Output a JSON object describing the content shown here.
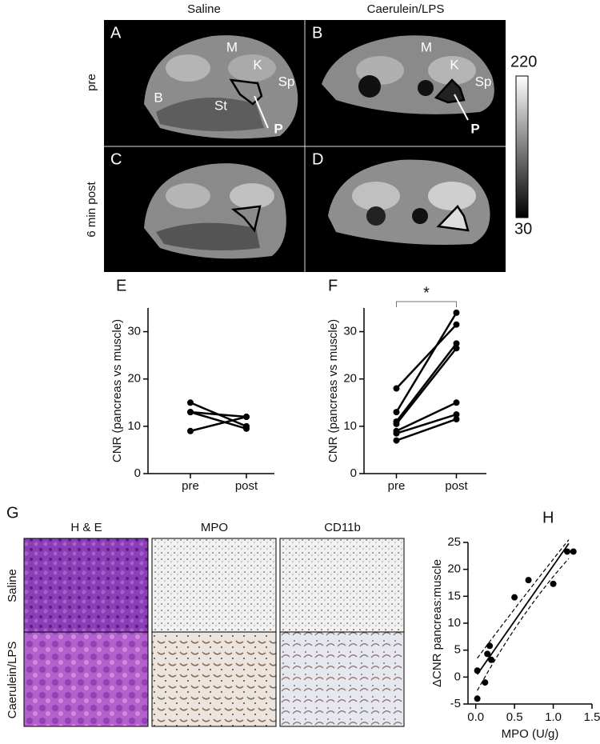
{
  "mri": {
    "columns": [
      "Saline",
      "Caerulein/LPS"
    ],
    "rows": [
      "pre",
      "6 min post"
    ],
    "panels": [
      "A",
      "B",
      "C",
      "D"
    ],
    "labels": [
      "M",
      "K",
      "Sp",
      "B",
      "St",
      "P",
      "M",
      "K",
      "Sp",
      "P"
    ],
    "colorbar": {
      "max": 220,
      "min": 30
    }
  },
  "histology": {
    "panel": "G",
    "columns": [
      "H & E",
      "MPO",
      "CD11b"
    ],
    "rows": [
      "Saline",
      "Caerulein/LPS"
    ]
  },
  "chart_data": [
    {
      "type": "line",
      "panel": "E",
      "ylabel": "CNR (pancreas vs muscle)",
      "categories": [
        "pre",
        "post"
      ],
      "series": [
        {
          "color": "#000000",
          "values": [
            15,
            10
          ]
        },
        {
          "color": "#000000",
          "values": [
            13,
            12
          ]
        },
        {
          "color": "#000000",
          "values": [
            13,
            9.5
          ]
        },
        {
          "color": "#000000",
          "values": [
            9,
            12
          ]
        }
      ],
      "ylim": [
        0,
        35
      ],
      "yticks": [
        0,
        10,
        20,
        30
      ]
    },
    {
      "type": "line",
      "panel": "F",
      "annotation": "*",
      "ylabel": "CNR (pancreas vs muscle)",
      "categories": [
        "pre",
        "post"
      ],
      "series": [
        {
          "color": "#000000",
          "values": [
            18,
            31.5
          ]
        },
        {
          "color": "#000000",
          "values": [
            13,
            34
          ]
        },
        {
          "color": "#000000",
          "values": [
            11,
            27.5
          ]
        },
        {
          "color": "#000000",
          "values": [
            10.5,
            26.5
          ]
        },
        {
          "color": "#000000",
          "values": [
            9,
            15
          ]
        },
        {
          "color": "#000000",
          "values": [
            8.5,
            12.5
          ]
        },
        {
          "color": "#000000",
          "values": [
            7,
            11.5
          ]
        }
      ],
      "ylim": [
        0,
        35
      ],
      "yticks": [
        0,
        10,
        20,
        30
      ]
    },
    {
      "type": "scatter",
      "panel": "H",
      "ylabel": "ΔCNR pancreas:muscle",
      "xlabel": "MPO (U/g)",
      "series": [
        {
          "style": "points",
          "color": "#000000",
          "x": [
            0.02,
            0.02,
            0.12,
            0.15,
            0.18,
            0.2,
            0.5,
            0.68,
            1.0,
            1.18,
            1.26
          ],
          "values": [
            1.2,
            -4,
            -1,
            4.3,
            5.8,
            3.2,
            14.8,
            18,
            17.3,
            23.3,
            23.3
          ]
        },
        {
          "style": "solid",
          "color": "#000000",
          "x": [
            0.02,
            1.2
          ],
          "values": [
            0.5,
            24.8
          ]
        },
        {
          "style": "dashed",
          "color": "#000000",
          "x": [
            0.02,
            0.6,
            1.2
          ],
          "values": [
            3.5,
            14.5,
            25.5
          ]
        },
        {
          "style": "dashed",
          "color": "#000000",
          "x": [
            0.02,
            0.6,
            1.2
          ],
          "values": [
            -2.5,
            11,
            22
          ]
        }
      ],
      "xlim": [
        -0.1,
        1.5
      ],
      "xticks": [
        {
          "value": 0,
          "label": "0.0"
        },
        0.5,
        {
          "value": 1,
          "label": "1.0"
        },
        1.5
      ],
      "ylim": [
        -5,
        25
      ],
      "yticks": [
        -5,
        0,
        5,
        10,
        15,
        20,
        25
      ]
    }
  ]
}
